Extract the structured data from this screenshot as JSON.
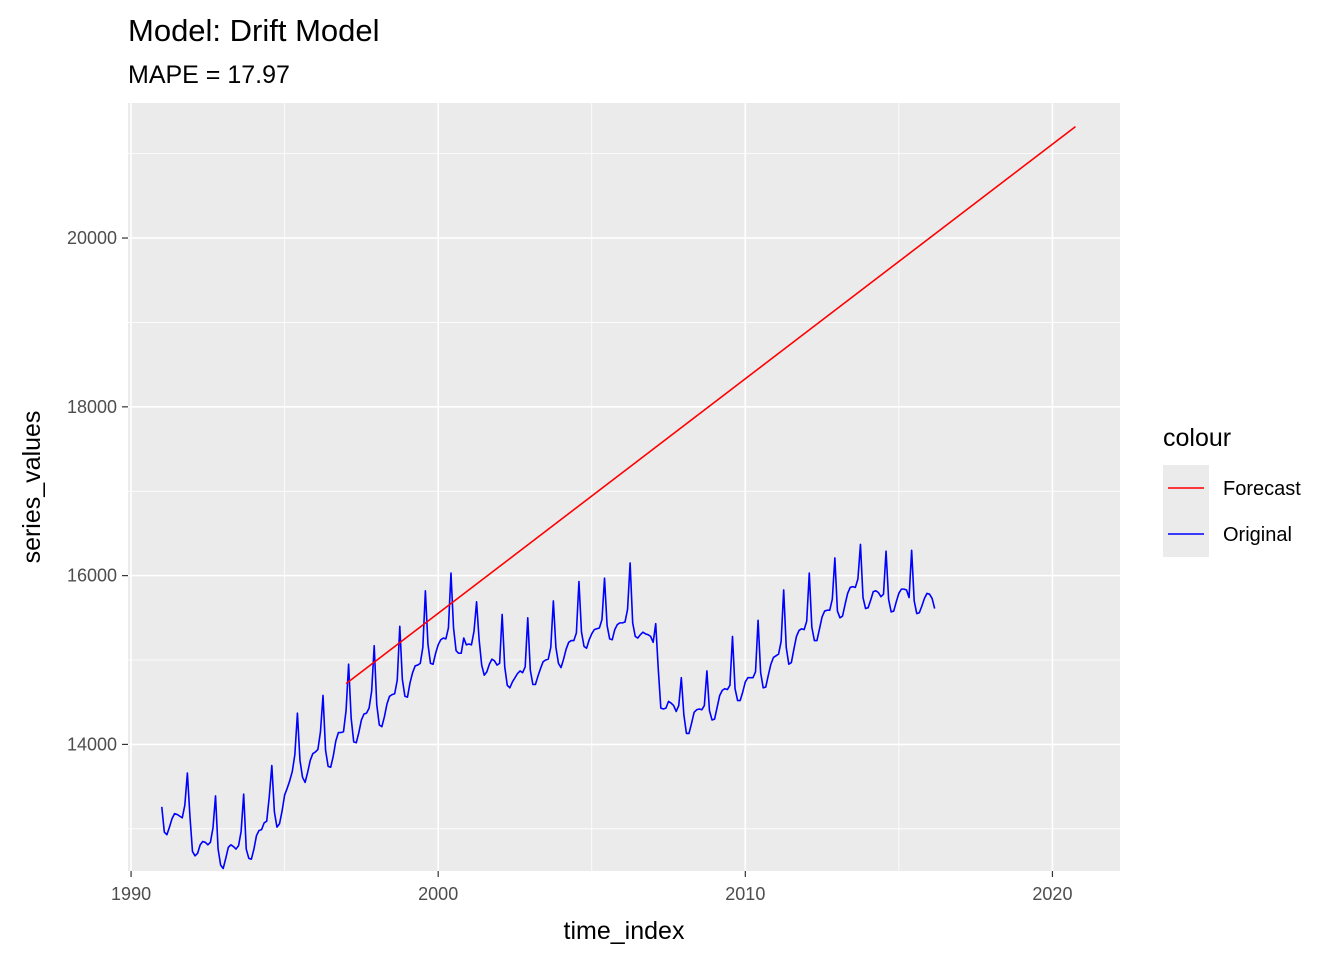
{
  "chart_data": {
    "type": "line",
    "title": "Model:  Drift Model",
    "subtitle": "MAPE = 17.97",
    "xlabel": "time_index",
    "ylabel": "series_values",
    "xlim": [
      1989.9,
      2022.2
    ],
    "ylim": [
      12500,
      21600
    ],
    "x_ticks": [
      1990,
      2000,
      2010,
      2020
    ],
    "x_tick_labels": [
      "1990",
      "2000",
      "2010",
      "2020"
    ],
    "y_ticks": [
      14000,
      16000,
      18000,
      20000
    ],
    "y_tick_labels": [
      "14000",
      "16000",
      "18000",
      "20000"
    ],
    "grid": true,
    "legend": {
      "title": "colour",
      "placement": "right",
      "entries": [
        {
          "label": "Forecast",
          "color": "#ff0000"
        },
        {
          "label": "Original",
          "color": "#0000ff"
        }
      ]
    },
    "series": [
      {
        "name": "Forecast",
        "color": "#ff0000",
        "x": [
          1997.0,
          2020.75
        ],
        "values": [
          14720,
          21320
        ]
      },
      {
        "name": "Original",
        "color": "#0000ff",
        "start": 1991.0,
        "step": 0.08333,
        "values": [
          13260,
          12960,
          12930,
          13020,
          13120,
          13180,
          13170,
          13150,
          13130,
          13280,
          13660,
          13150,
          12730,
          12680,
          12710,
          12810,
          12850,
          12840,
          12810,
          12840,
          13010,
          13390,
          12760,
          12570,
          12530,
          12650,
          12780,
          12810,
          12790,
          12760,
          12800,
          12970,
          13410,
          12760,
          12650,
          12640,
          12760,
          12920,
          12980,
          12990,
          13070,
          13090,
          13380,
          13750,
          13200,
          13020,
          13060,
          13210,
          13400,
          13480,
          13570,
          13680,
          13880,
          14370,
          13810,
          13610,
          13550,
          13670,
          13810,
          13890,
          13910,
          13940,
          14150,
          14580,
          13930,
          13740,
          13730,
          13860,
          14040,
          14140,
          14140,
          14150,
          14400,
          14950,
          14310,
          14030,
          14020,
          14140,
          14290,
          14360,
          14370,
          14430,
          14630,
          15170,
          14470,
          14230,
          14210,
          14330,
          14480,
          14570,
          14590,
          14600,
          14760,
          15400,
          14770,
          14570,
          14560,
          14730,
          14850,
          14930,
          14940,
          14960,
          15150,
          15820,
          15190,
          14960,
          14950,
          15080,
          15180,
          15240,
          15260,
          15250,
          15380,
          16030,
          15380,
          15110,
          15080,
          15080,
          15260,
          15180,
          15190,
          15180,
          15340,
          15690,
          15240,
          14940,
          14820,
          14860,
          14950,
          15010,
          14990,
          14940,
          14960,
          15540,
          14920,
          14700,
          14670,
          14740,
          14790,
          14840,
          14870,
          14850,
          14920,
          15500,
          14880,
          14710,
          14710,
          14810,
          14900,
          14980,
          15000,
          15010,
          15150,
          15700,
          15150,
          14960,
          14910,
          15010,
          15130,
          15210,
          15230,
          15230,
          15320,
          15930,
          15330,
          15160,
          15140,
          15240,
          15310,
          15360,
          15370,
          15380,
          15480,
          15970,
          15410,
          15250,
          15240,
          15360,
          15420,
          15440,
          15440,
          15450,
          15600,
          16150,
          15440,
          15280,
          15260,
          15300,
          15330,
          15310,
          15300,
          15280,
          15210,
          15430,
          14890,
          14430,
          14420,
          14430,
          14510,
          14490,
          14460,
          14390,
          14460,
          14790,
          14350,
          14130,
          14130,
          14250,
          14380,
          14410,
          14420,
          14410,
          14460,
          14870,
          14400,
          14290,
          14300,
          14440,
          14580,
          14640,
          14660,
          14650,
          14700,
          15280,
          14660,
          14520,
          14520,
          14620,
          14740,
          14790,
          14790,
          14790,
          14860,
          15470,
          14850,
          14670,
          14680,
          14820,
          14950,
          15030,
          15050,
          15070,
          15220,
          15830,
          15150,
          14950,
          14970,
          15130,
          15280,
          15350,
          15370,
          15360,
          15460,
          16030,
          15390,
          15230,
          15230,
          15370,
          15510,
          15580,
          15590,
          15590,
          15720,
          16210,
          15580,
          15500,
          15520,
          15660,
          15790,
          15860,
          15870,
          15860,
          15960,
          16370,
          15740,
          15610,
          15620,
          15710,
          15810,
          15820,
          15800,
          15750,
          15780,
          16290,
          15720,
          15570,
          15580,
          15690,
          15790,
          15840,
          15840,
          15830,
          15740,
          16300,
          15700,
          15550,
          15560,
          15640,
          15730,
          15790,
          15780,
          15730,
          15610
        ]
      }
    ]
  }
}
